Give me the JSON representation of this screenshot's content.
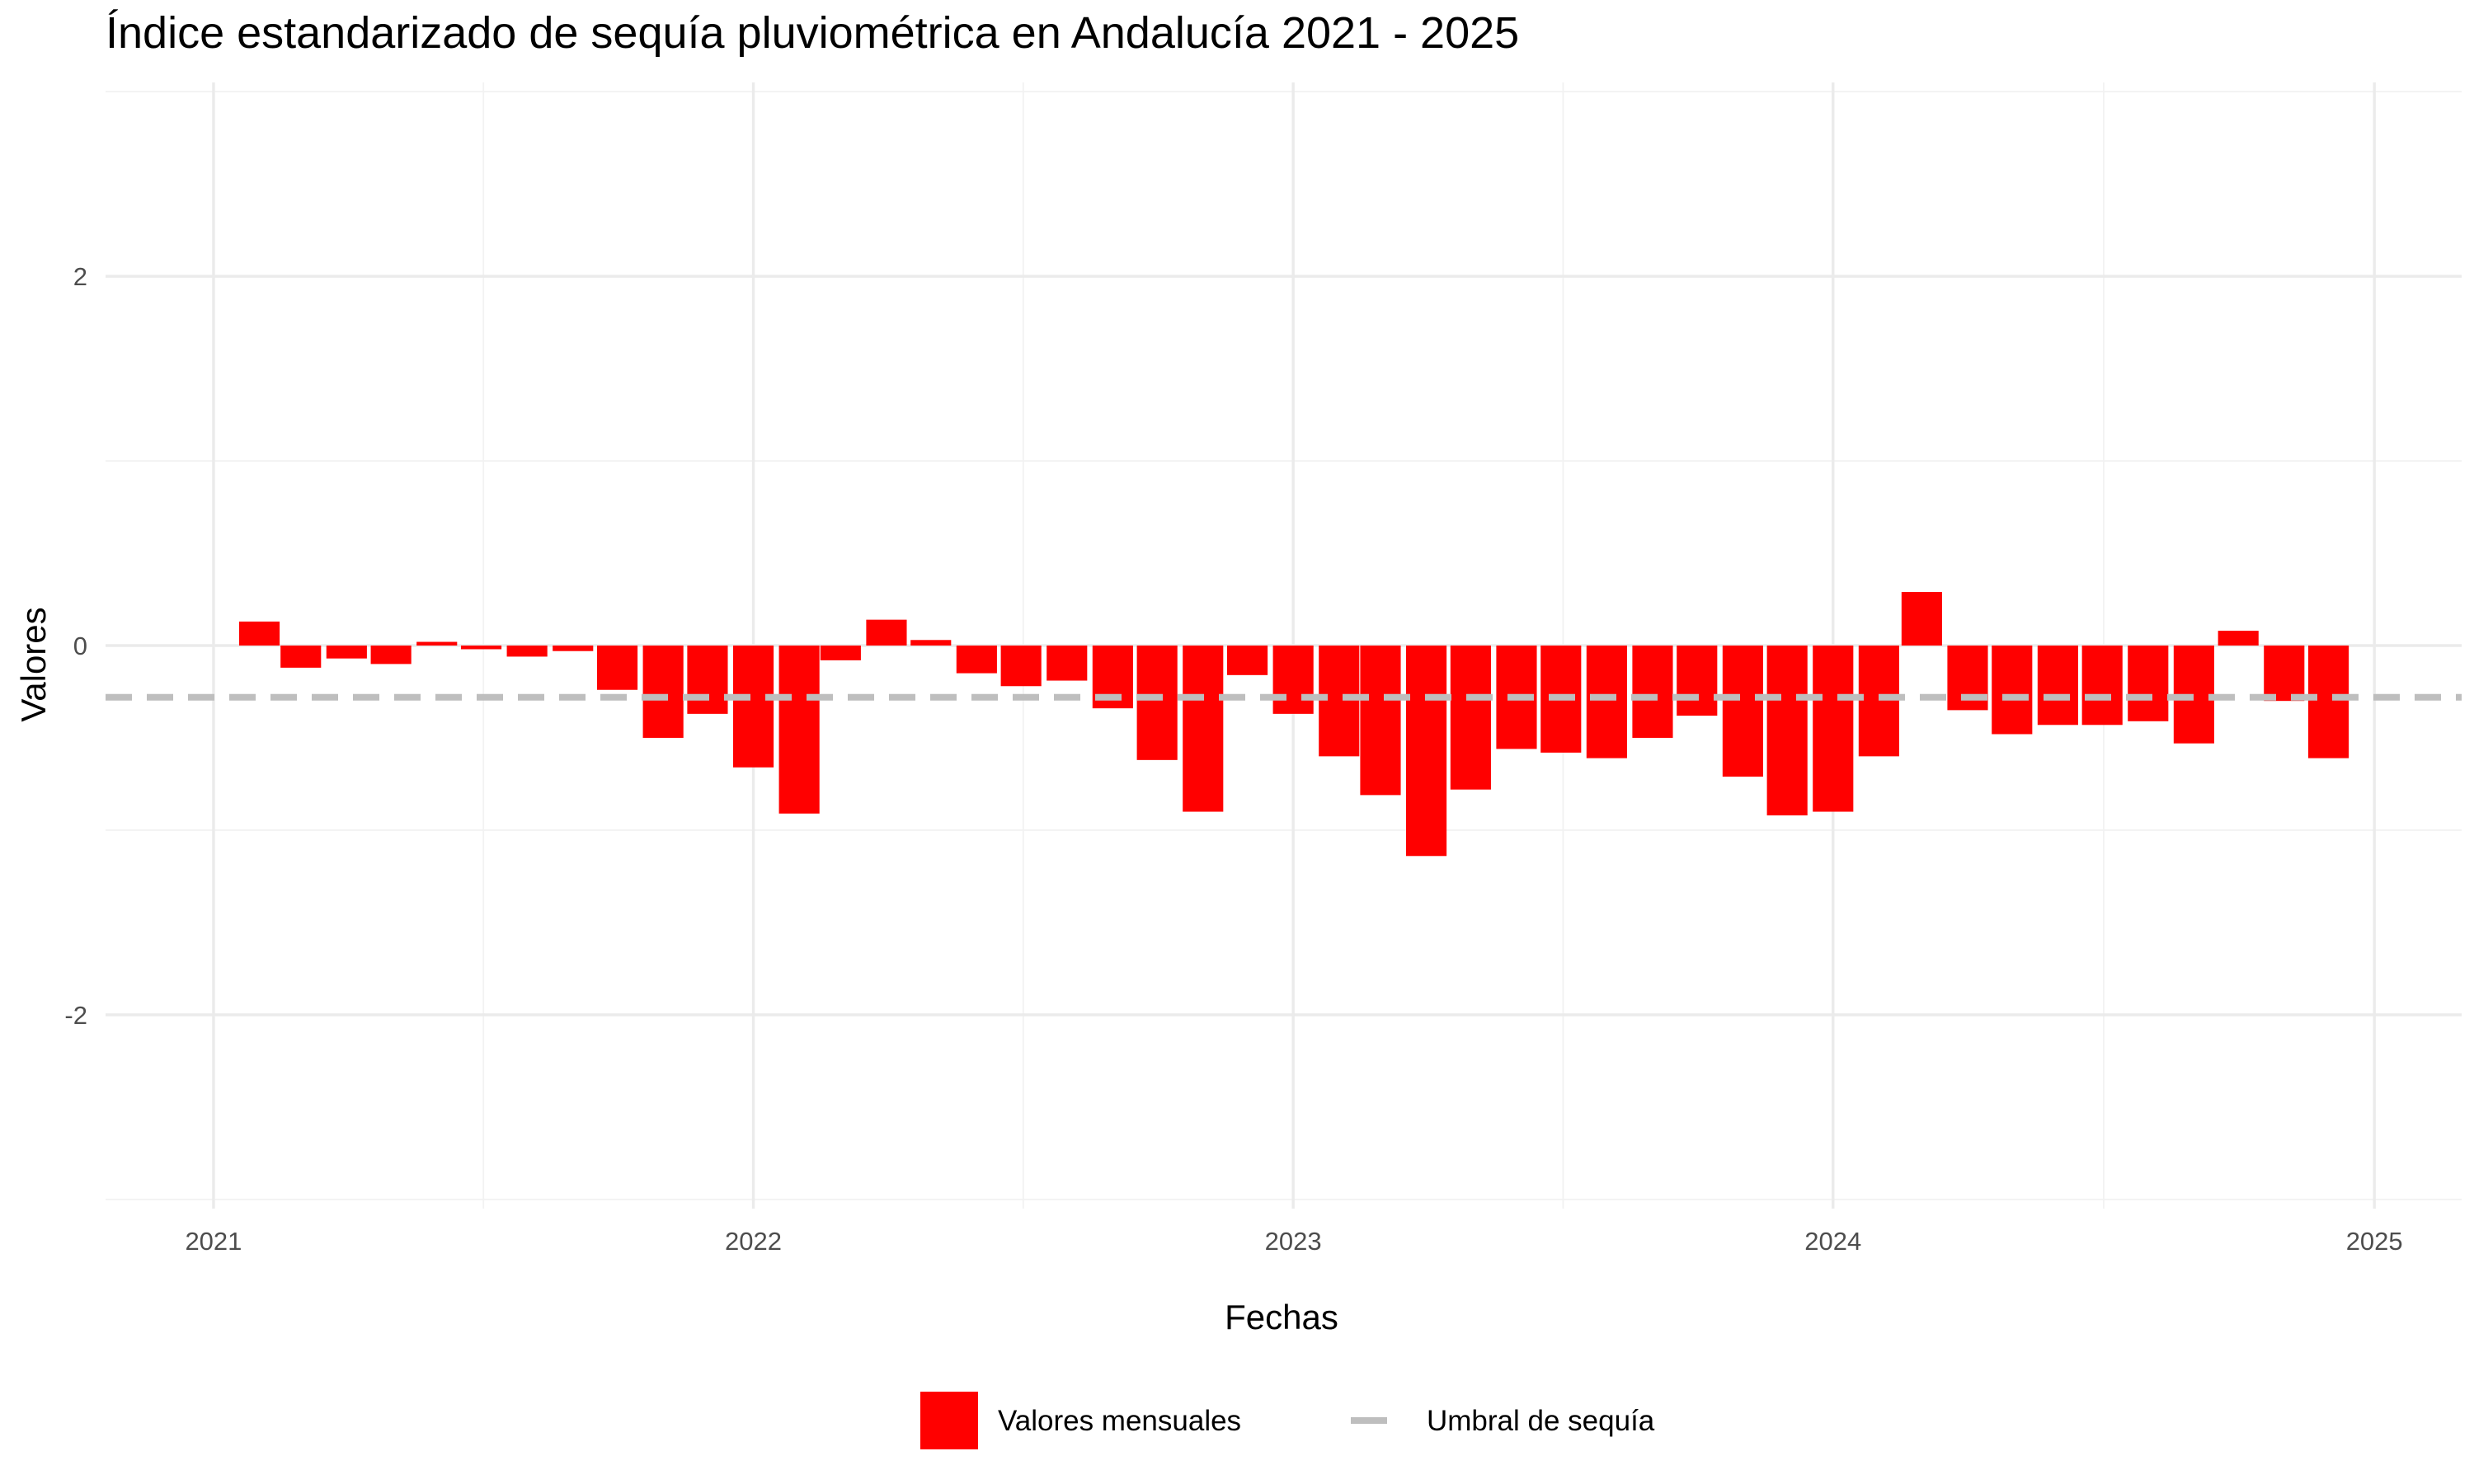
{
  "chart_data": {
    "type": "bar",
    "title": "Índice estandarizado de sequía pluviométrica en Andalucía 2021 - 2025",
    "xlabel": "Fechas",
    "ylabel": "Valores",
    "xlim": [
      "2020-10-20",
      "2025-03-01"
    ],
    "ylim": [
      -3.05,
      3.05
    ],
    "x_ticks": [
      {
        "date": "2021-01-01",
        "label": "2021"
      },
      {
        "date": "2022-01-01",
        "label": "2022"
      },
      {
        "date": "2023-01-01",
        "label": "2023"
      },
      {
        "date": "2024-01-01",
        "label": "2024"
      },
      {
        "date": "2025-01-01",
        "label": "2025"
      }
    ],
    "y_ticks": [
      -2,
      0,
      2
    ],
    "y_tick_labels": [
      "-2",
      "0",
      "2"
    ],
    "grid": true,
    "legend_position": "bottom",
    "threshold": {
      "name": "Umbral de sequía",
      "value": -0.28,
      "color": "#bebebe",
      "style": "dashed"
    },
    "series": [
      {
        "name": "Valores mensuales",
        "color": "#ff0000",
        "points": [
          {
            "x": "2021-02-01",
            "y": 0.13
          },
          {
            "x": "2021-03-01",
            "y": -0.12
          },
          {
            "x": "2021-04-01",
            "y": -0.07
          },
          {
            "x": "2021-05-01",
            "y": -0.1
          },
          {
            "x": "2021-06-01",
            "y": 0.02
          },
          {
            "x": "2021-07-01",
            "y": -0.02
          },
          {
            "x": "2021-08-01",
            "y": -0.06
          },
          {
            "x": "2021-09-01",
            "y": -0.03
          },
          {
            "x": "2021-10-01",
            "y": -0.24
          },
          {
            "x": "2021-11-01",
            "y": -0.5
          },
          {
            "x": "2021-12-01",
            "y": -0.37
          },
          {
            "x": "2022-01-01",
            "y": -0.66
          },
          {
            "x": "2022-02-01",
            "y": -0.91
          },
          {
            "x": "2022-03-01",
            "y": -0.08
          },
          {
            "x": "2022-04-01",
            "y": 0.14
          },
          {
            "x": "2022-05-01",
            "y": 0.03
          },
          {
            "x": "2022-06-01",
            "y": -0.15
          },
          {
            "x": "2022-07-01",
            "y": -0.22
          },
          {
            "x": "2022-08-01",
            "y": -0.19
          },
          {
            "x": "2022-09-01",
            "y": -0.34
          },
          {
            "x": "2022-10-01",
            "y": -0.62
          },
          {
            "x": "2022-11-01",
            "y": -0.9
          },
          {
            "x": "2022-12-01",
            "y": -0.16
          },
          {
            "x": "2023-01-01",
            "y": -0.37
          },
          {
            "x": "2023-02-01",
            "y": -0.6
          },
          {
            "x": "2023-03-01",
            "y": -0.81
          },
          {
            "x": "2023-04-01",
            "y": -1.14
          },
          {
            "x": "2023-05-01",
            "y": -0.78
          },
          {
            "x": "2023-06-01",
            "y": -0.56
          },
          {
            "x": "2023-07-01",
            "y": -0.58
          },
          {
            "x": "2023-08-01",
            "y": -0.61
          },
          {
            "x": "2023-09-01",
            "y": -0.5
          },
          {
            "x": "2023-10-01",
            "y": -0.38
          },
          {
            "x": "2023-11-01",
            "y": -0.71
          },
          {
            "x": "2023-12-01",
            "y": -0.92
          },
          {
            "x": "2024-01-01",
            "y": -0.9
          },
          {
            "x": "2024-02-01",
            "y": -0.6
          },
          {
            "x": "2024-03-01",
            "y": 0.29
          },
          {
            "x": "2024-04-01",
            "y": -0.35
          },
          {
            "x": "2024-05-01",
            "y": -0.48
          },
          {
            "x": "2024-06-01",
            "y": -0.43
          },
          {
            "x": "2024-07-01",
            "y": -0.43
          },
          {
            "x": "2024-08-01",
            "y": -0.41
          },
          {
            "x": "2024-09-01",
            "y": -0.53
          },
          {
            "x": "2024-10-01",
            "y": 0.08
          },
          {
            "x": "2024-11-01",
            "y": -0.3
          },
          {
            "x": "2024-12-01",
            "y": -0.61
          }
        ]
      }
    ]
  }
}
